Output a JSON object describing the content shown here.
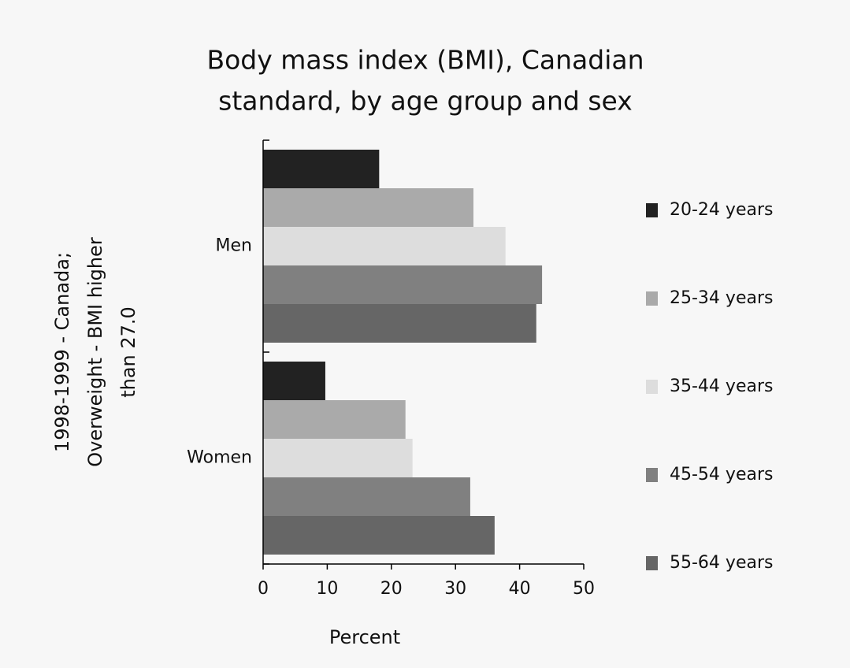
{
  "chart_data": {
    "type": "hbar",
    "title": [
      "Body mass index (BMI), Canadian",
      "standard, by age group and sex"
    ],
    "ylabel": [
      "1998-1999 - Canada;",
      "Overweight - BMI higher",
      "than 27.0"
    ],
    "xlabel": "Percent",
    "categories": [
      "Men",
      "Women"
    ],
    "series": [
      {
        "name": "20-24 years",
        "color": "#222222",
        "values": [
          18.1,
          9.7
        ]
      },
      {
        "name": "25-34 years",
        "color": "#aaaaaa",
        "values": [
          32.8,
          22.2
        ]
      },
      {
        "name": "35-44 years",
        "color": "#dddddd",
        "values": [
          37.8,
          23.3
        ]
      },
      {
        "name": "45-54 years",
        "color": "#808080",
        "values": [
          43.5,
          32.3
        ]
      },
      {
        "name": "55-64 years",
        "color": "#666666",
        "values": [
          42.6,
          36.1
        ]
      }
    ],
    "xlim": [
      0,
      50
    ],
    "xticks": [
      0,
      10,
      20,
      30,
      40,
      50
    ],
    "legend": "right"
  }
}
